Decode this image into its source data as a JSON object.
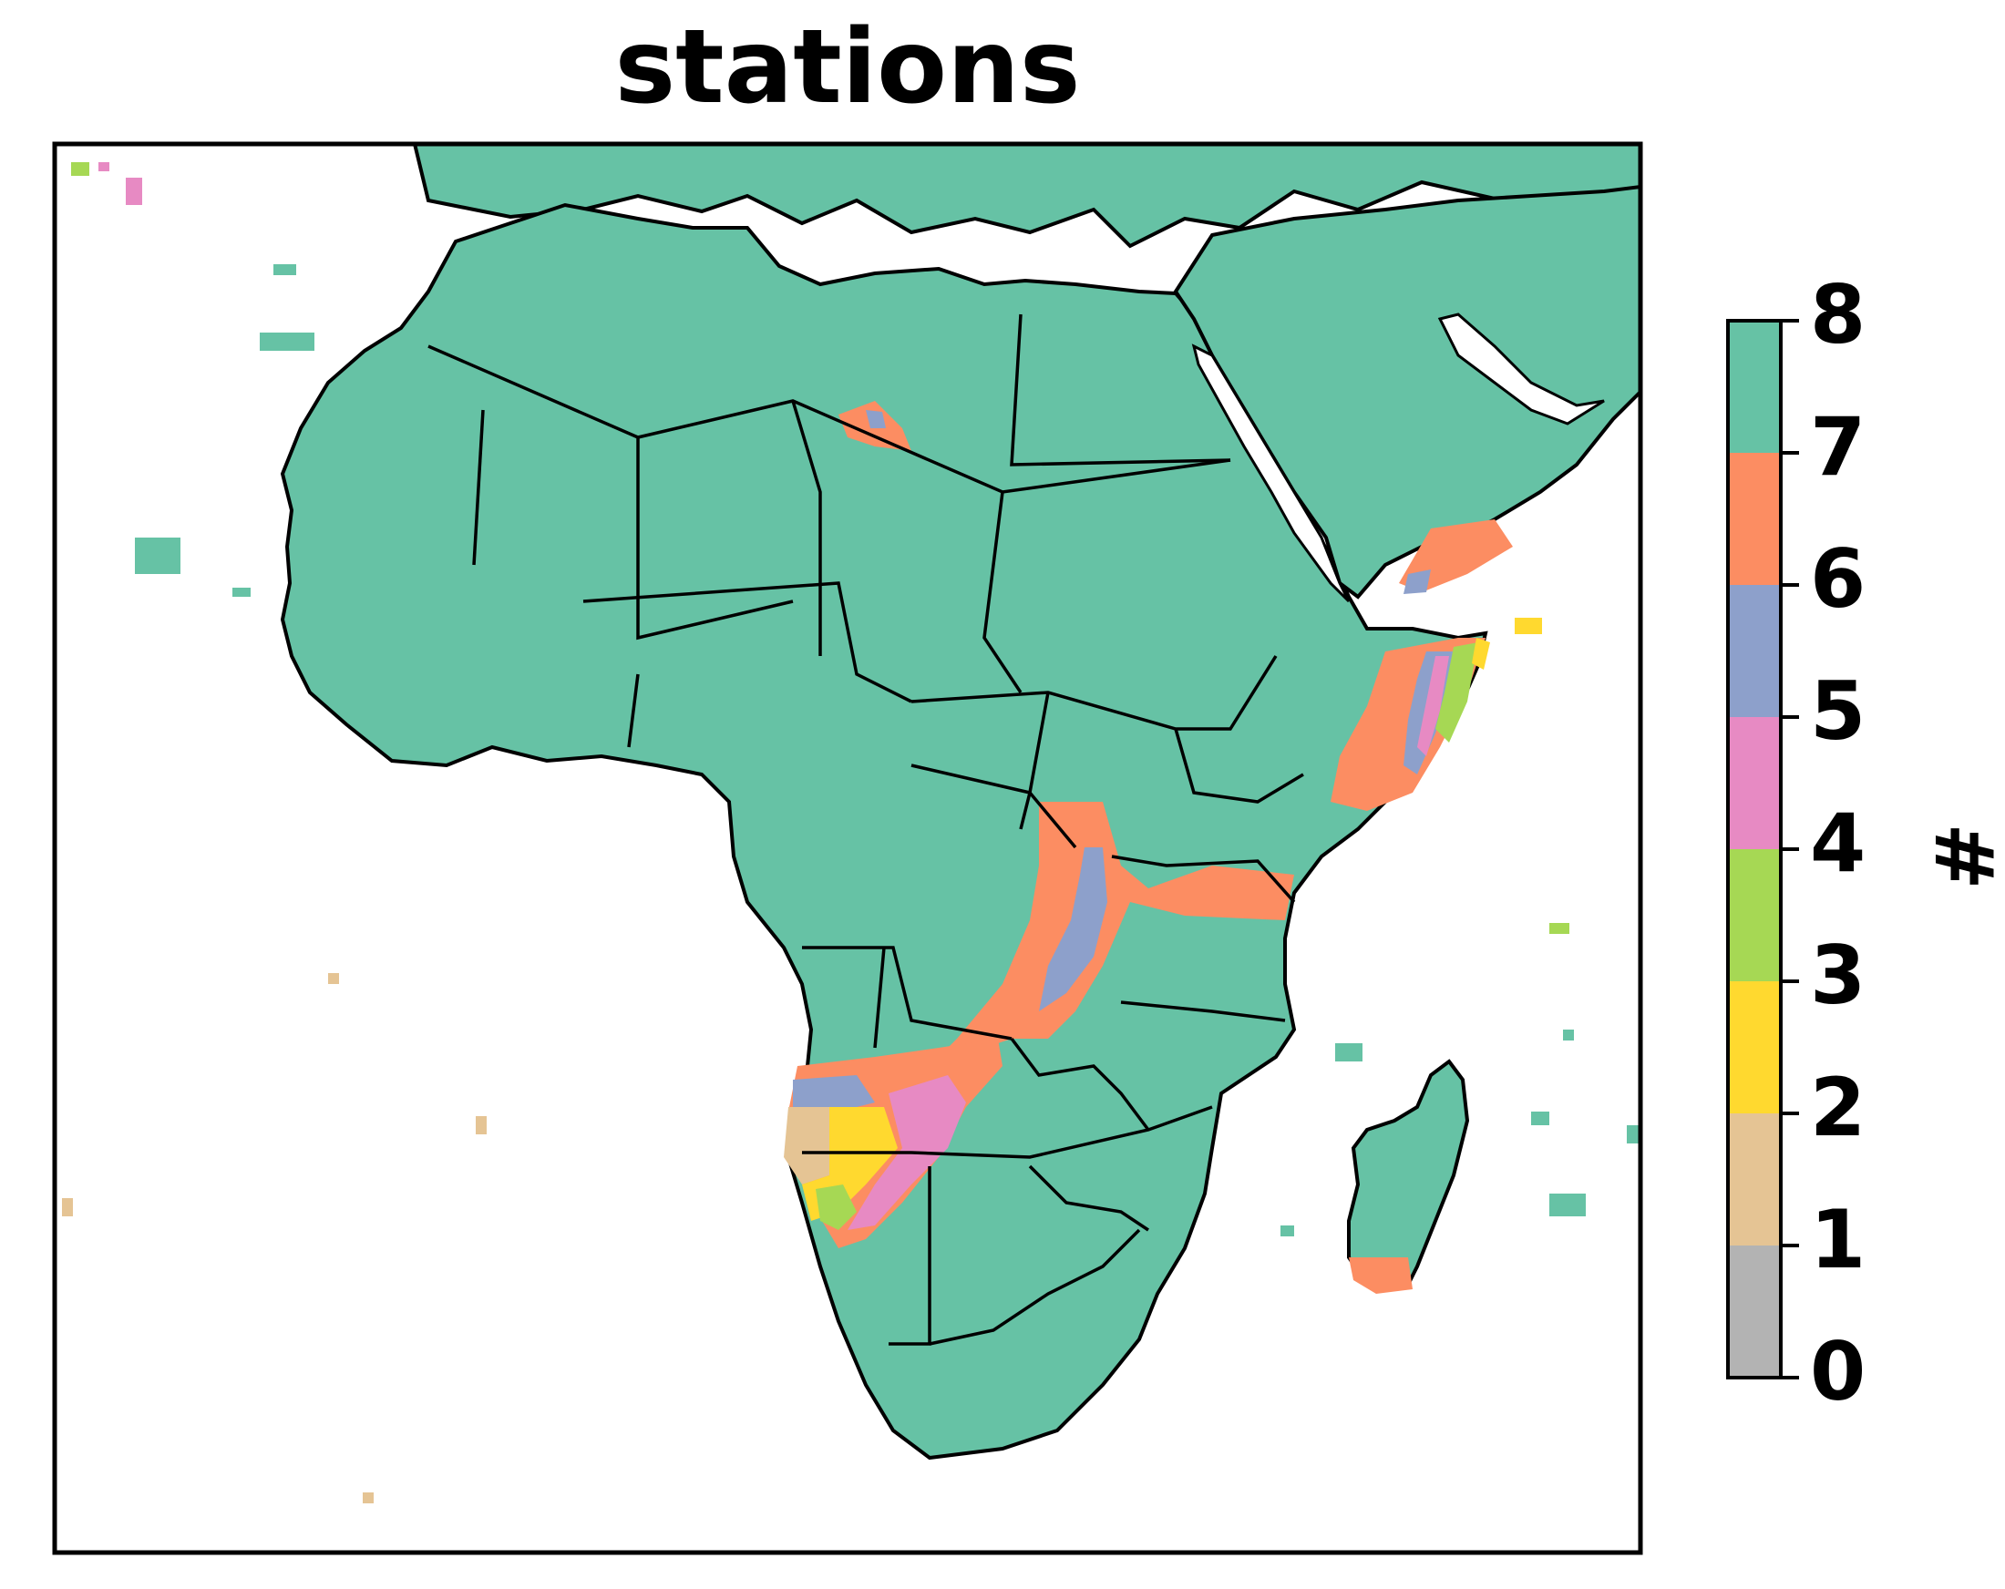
{
  "title": "stations",
  "colorbar": {
    "label": "#",
    "ticks": [
      "0",
      "1",
      "2",
      "3",
      "4",
      "5",
      "6",
      "7",
      "8"
    ],
    "bins": [
      {
        "from": 0,
        "to": 1,
        "color": "#b3b3b3"
      },
      {
        "from": 1,
        "to": 2,
        "color": "#e5c494"
      },
      {
        "from": 2,
        "to": 3,
        "color": "#ffd92f"
      },
      {
        "from": 3,
        "to": 4,
        "color": "#a6d854"
      },
      {
        "from": 4,
        "to": 5,
        "color": "#e78ac3"
      },
      {
        "from": 5,
        "to": 6,
        "color": "#8da0cb"
      },
      {
        "from": 6,
        "to": 7,
        "color": "#fc8d62"
      },
      {
        "from": 7,
        "to": 8,
        "color": "#66c2a5"
      }
    ]
  },
  "colors": {
    "land": "#66c2a5",
    "border": "#000000",
    "background": "#ffffff"
  },
  "regions": [
    {
      "name": "land",
      "value": 8,
      "color": "#66c2a5"
    },
    {
      "name": "east-horn-low",
      "value": 6,
      "color": "#fc8d62"
    },
    {
      "name": "central-rift-low",
      "value": 6,
      "color": "#fc8d62"
    },
    {
      "name": "namibia-coast-low",
      "value": 1,
      "color": "#e5c494"
    }
  ]
}
